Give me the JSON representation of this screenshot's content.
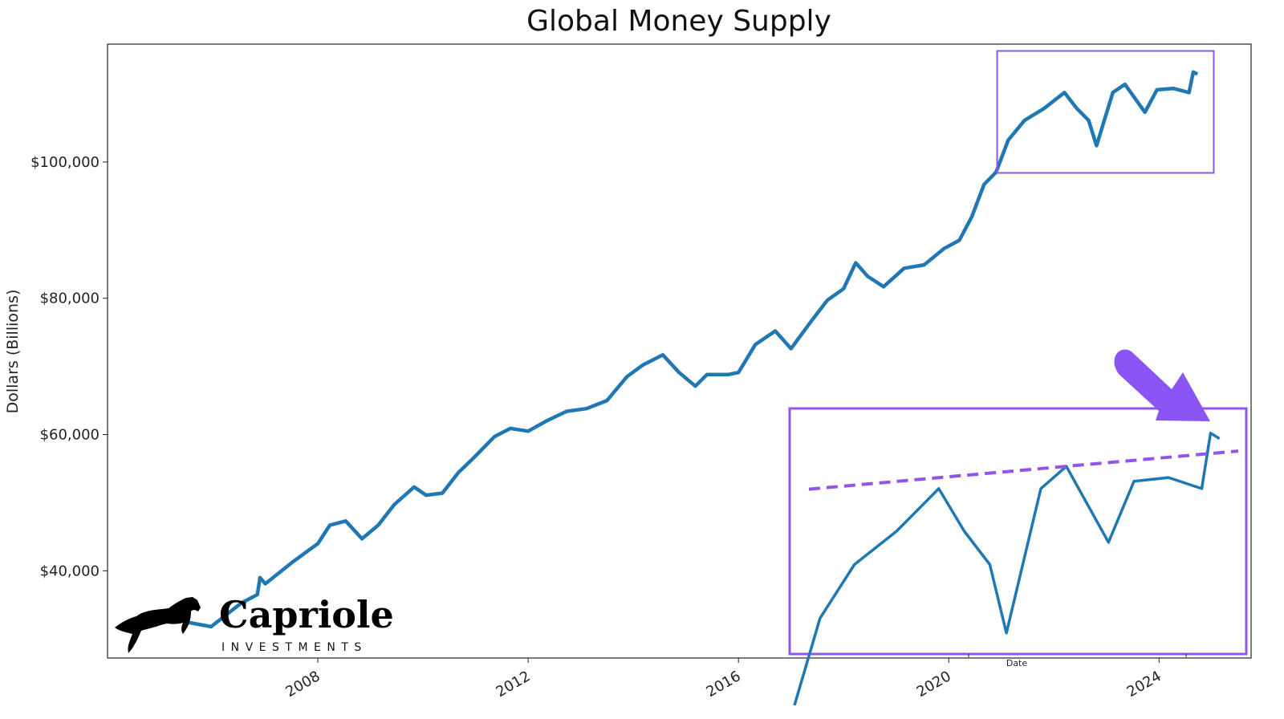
{
  "chart_data": {
    "type": "line",
    "title": "Global Money Supply",
    "xlabel": "",
    "ylabel": "Dollars (Billions)",
    "xlim": [
      2004.0,
      2025.75
    ],
    "ylim": [
      27200,
      117300
    ],
    "grid": false,
    "legend": "none",
    "x_ticks": [
      2008,
      2012,
      2016,
      2020,
      2024
    ],
    "x_tick_labels": [
      "2008",
      "2012",
      "2016",
      "2020",
      "2024"
    ],
    "y_ticks": [
      40000,
      60000,
      80000,
      100000
    ],
    "y_tick_labels": [
      "$40,000",
      "$60,000",
      "$80,000",
      "$100,000"
    ],
    "line_color": "#1f77b4",
    "series": [
      {
        "x": [
          2005.48,
          2005.97,
          2006.55,
          2006.85,
          2006.9,
          2007.0,
          2007.54,
          2008.0,
          2008.23,
          2008.53,
          2008.84,
          2009.15,
          2009.45,
          2009.83,
          2010.06,
          2010.37,
          2010.67,
          2010.98,
          2011.36,
          2011.66,
          2012.0,
          2012.35,
          2012.73,
          2013.11,
          2013.5,
          2013.88,
          2014.18,
          2014.56,
          2014.87,
          2015.18,
          2015.4,
          2015.8,
          2016.0,
          2016.32,
          2016.7,
          2017.0,
          2017.39,
          2017.69,
          2018.0,
          2018.23,
          2018.46,
          2018.76,
          2019.15,
          2019.53,
          2019.91,
          2020.2,
          2020.44,
          2020.67,
          2020.9,
          2021.13,
          2021.44,
          2021.82,
          2022.2,
          2022.43,
          2022.66,
          2022.81,
          2023.12,
          2023.35,
          2023.73,
          2023.96,
          2024.27,
          2024.57,
          2024.65,
          2024.73
        ],
        "y": [
          32500,
          31800,
          35300,
          36500,
          39000,
          38100,
          41400,
          44000,
          46700,
          47300,
          44700,
          46700,
          49700,
          52300,
          51100,
          51400,
          54400,
          56700,
          59700,
          60900,
          60500,
          62000,
          63400,
          63800,
          65000,
          68500,
          70200,
          71700,
          69100,
          67100,
          68800,
          68800,
          69100,
          73200,
          75200,
          72600,
          76700,
          79700,
          81400,
          85200,
          83200,
          81700,
          84400,
          84900,
          87300,
          88500,
          92000,
          96700,
          98500,
          103200,
          106100,
          107900,
          110200,
          107900,
          106100,
          102400,
          110200,
          111400,
          107300,
          110600,
          110800,
          110200,
          113200,
          112900
        ]
      }
    ],
    "annotations": {
      "highlight_box": {
        "x": [
          2020.92,
          2025.04
        ],
        "y": [
          98400,
          116300
        ],
        "color": "#9155e8"
      },
      "inset": {
        "xlabel": "Date",
        "xlim": [
          2020.9,
          2024.95
        ],
        "ylim": [
          101400,
          114400
        ],
        "border_color": "#9155e8",
        "trend_line": {
          "x": [
            2021.03,
            2024.9
          ],
          "y": [
            110170,
            112230
          ],
          "color": "#9155e8",
          "style": "dashed"
        }
      },
      "arrow": {
        "color": "#8b55f5"
      }
    }
  },
  "logo": {
    "name": "Capriole",
    "subtitle": "INVESTMENTS"
  }
}
